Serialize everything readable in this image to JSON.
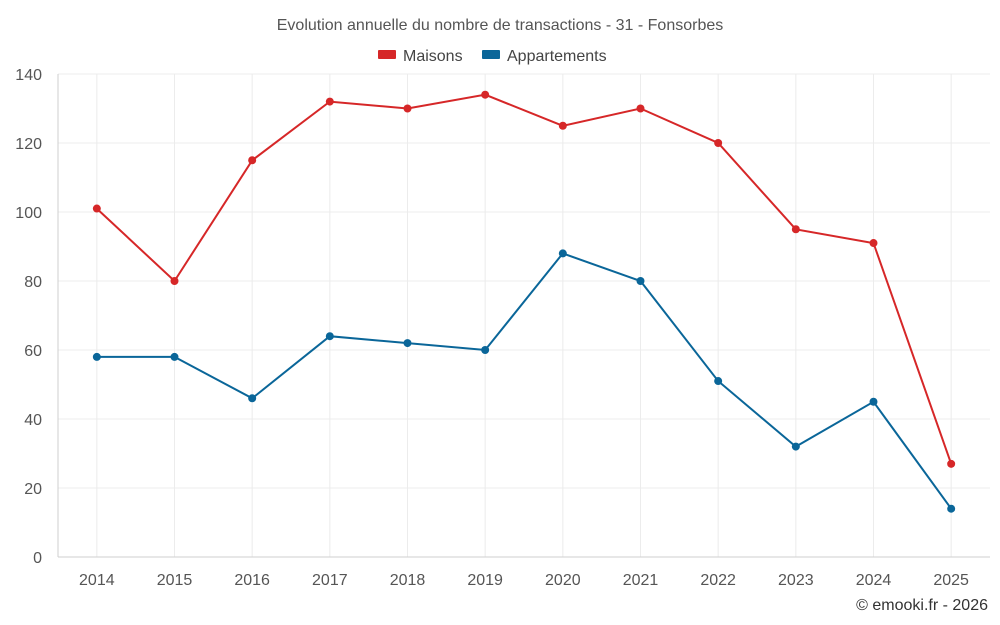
{
  "chart_data": {
    "type": "line",
    "title": "Evolution annuelle du nombre de transactions - 31 - Fonsorbes",
    "xlabel": "",
    "ylabel": "",
    "categories": [
      "2014",
      "2015",
      "2016",
      "2017",
      "2018",
      "2019",
      "2020",
      "2021",
      "2022",
      "2023",
      "2024",
      "2025"
    ],
    "ylim": [
      0,
      140
    ],
    "yticks": [
      "0",
      "20",
      "40",
      "60",
      "80",
      "100",
      "120",
      "140"
    ],
    "grid": true,
    "legend_position": "top-center",
    "series": [
      {
        "name": "Maisons",
        "color": "#d62728",
        "values": [
          101,
          80,
          115,
          132,
          130,
          134,
          125,
          130,
          120,
          95,
          91,
          27
        ]
      },
      {
        "name": "Appartements",
        "color": "#0a6699",
        "values": [
          58,
          58,
          46,
          64,
          62,
          60,
          88,
          80,
          51,
          32,
          45,
          14
        ]
      }
    ]
  },
  "credit": "© emooki.fr - 2026"
}
